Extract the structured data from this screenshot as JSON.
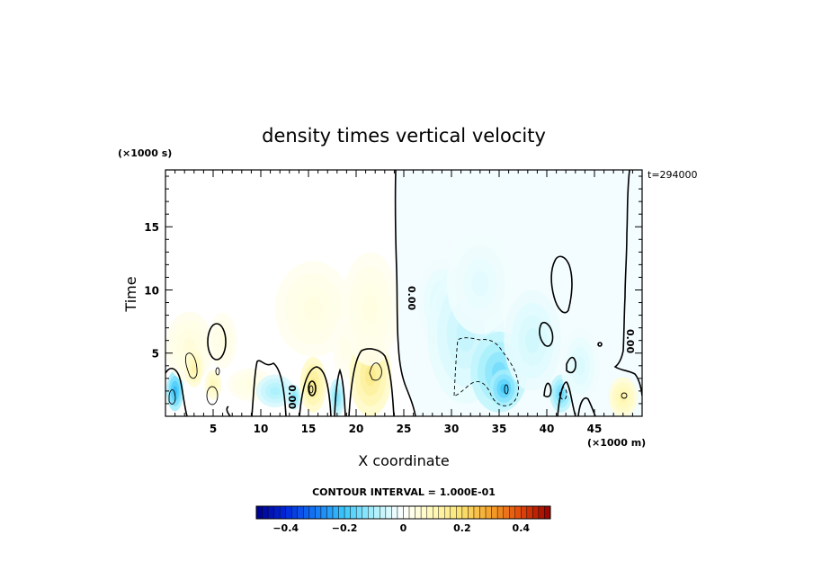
{
  "chart_data": {
    "type": "heatmap",
    "title": "density times vertical velocity",
    "xlabel": "X coordinate",
    "ylabel": "Time",
    "x_unit": "(×1000 m)",
    "y_unit": "(×1000 s)",
    "time_stamp": "t=294000",
    "xlim": [
      0,
      50
    ],
    "ylim": [
      0,
      19.5
    ],
    "x_ticks": [
      5,
      10,
      15,
      20,
      25,
      30,
      35,
      40,
      45
    ],
    "y_ticks": [
      5,
      10,
      15
    ],
    "contour_interval": "CONTOUR INTERVAL = 1.000E-01",
    "contour_labels": [
      "0.00",
      "0.00",
      "0.00"
    ],
    "colorbar": {
      "min": -0.5,
      "max": 0.5,
      "ticks": [
        -0.4,
        -0.2,
        0,
        0.2,
        0.4
      ],
      "tick_labels": [
        "−0.4",
        "−0.2",
        "0",
        "0.2",
        "0.4"
      ]
    },
    "blobs": [
      {
        "x": 1.0,
        "y": 2.0,
        "rx": 0.9,
        "ry": 1.6,
        "v": -0.22
      },
      {
        "x": 2.5,
        "y": 5.5,
        "rx": 2.5,
        "ry": 2.8,
        "v": 0.05
      },
      {
        "x": 3.0,
        "y": 3.8,
        "rx": 1.0,
        "ry": 1.5,
        "v": 0.12
      },
      {
        "x": 5.0,
        "y": 2.5,
        "rx": 0.9,
        "ry": 1.2,
        "v": 0.1
      },
      {
        "x": 6.0,
        "y": 6.0,
        "rx": 1.5,
        "ry": 2.2,
        "v": 0.04
      },
      {
        "x": 9.0,
        "y": 2.5,
        "rx": 2.5,
        "ry": 1.3,
        "v": 0.04
      },
      {
        "x": 11.5,
        "y": 2.0,
        "rx": 2.0,
        "ry": 1.3,
        "v": -0.1
      },
      {
        "x": 13.5,
        "y": 1.5,
        "rx": 0.7,
        "ry": 1.0,
        "v": -0.14
      },
      {
        "x": 15.5,
        "y": 2.5,
        "rx": 1.4,
        "ry": 2.2,
        "v": 0.16
      },
      {
        "x": 15.5,
        "y": 8.5,
        "rx": 4.0,
        "ry": 3.8,
        "v": 0.04
      },
      {
        "x": 18.0,
        "y": 1.5,
        "rx": 0.8,
        "ry": 1.5,
        "v": -0.14
      },
      {
        "x": 19.0,
        "y": 5.5,
        "rx": 1.5,
        "ry": 2.5,
        "v": 0.03
      },
      {
        "x": 21.5,
        "y": 3.2,
        "rx": 2.2,
        "ry": 3.2,
        "v": 0.16
      },
      {
        "x": 21.5,
        "y": 8.5,
        "rx": 3.0,
        "ry": 4.5,
        "v": 0.04
      },
      {
        "x": 29.0,
        "y": 9.0,
        "rx": 2.5,
        "ry": 3.5,
        "v": -0.05
      },
      {
        "x": 31.5,
        "y": 6.5,
        "rx": 4.0,
        "ry": 5.5,
        "v": -0.07
      },
      {
        "x": 35.0,
        "y": 3.5,
        "rx": 3.0,
        "ry": 3.2,
        "v": -0.15
      },
      {
        "x": 35.5,
        "y": 2.2,
        "rx": 1.5,
        "ry": 1.5,
        "v": -0.2
      },
      {
        "x": 33.0,
        "y": 10.5,
        "rx": 3.5,
        "ry": 4.0,
        "v": -0.04
      },
      {
        "x": 38.5,
        "y": 6.0,
        "rx": 3.0,
        "ry": 4.0,
        "v": -0.06
      },
      {
        "x": 41.5,
        "y": 1.8,
        "rx": 1.2,
        "ry": 1.5,
        "v": -0.16
      },
      {
        "x": 43.5,
        "y": 4.0,
        "rx": 2.0,
        "ry": 3.0,
        "v": -0.05
      },
      {
        "x": 48.0,
        "y": 1.5,
        "rx": 1.5,
        "ry": 1.6,
        "v": 0.12
      }
    ]
  }
}
